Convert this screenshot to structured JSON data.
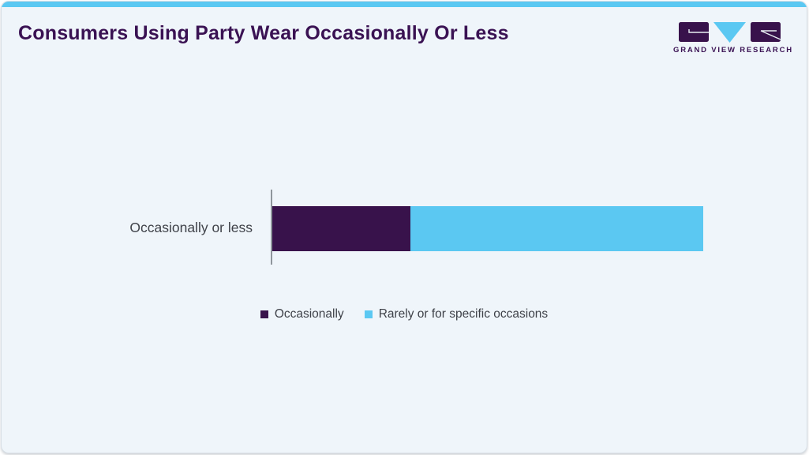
{
  "page": {
    "title": "Consumers Using Party Wear Occasionally Or Less"
  },
  "logo": {
    "text": "GRAND VIEW RESEARCH"
  },
  "chart_data": {
    "type": "bar",
    "orientation": "horizontal",
    "stacked": true,
    "title": "Consumers Using Party Wear Occasionally Or Less",
    "categories": [
      "Occasionally or less"
    ],
    "series": [
      {
        "name": "Occasionally",
        "values": [
          32
        ],
        "color": "#38124b"
      },
      {
        "name": "Rarely or for specific occasions",
        "values": [
          68
        ],
        "color": "#5bc8f2"
      }
    ],
    "xlabel": "",
    "ylabel": "",
    "xlim": [
      0,
      100
    ],
    "grid": false,
    "data_labels": false,
    "legend_position": "bottom"
  },
  "colors": {
    "accent_blue": "#5bc8f2",
    "brand_purple": "#38124b",
    "title_purple": "#3a1253",
    "text_gray": "#3f4249",
    "axis_gray": "#8f969c",
    "card_background": "#eff5fa",
    "card_border": "#d7dee5"
  }
}
